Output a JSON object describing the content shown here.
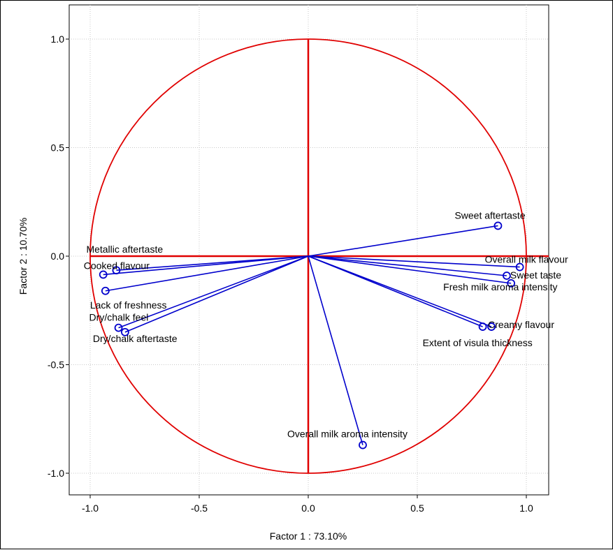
{
  "chart_data": {
    "type": "scatter",
    "subtype": "correlation-circle",
    "xlabel": "Factor 1 : 73.10%",
    "ylabel": "Factor 2 : 10.70%",
    "xlim": [
      -1.1,
      1.1
    ],
    "ylim": [
      -1.1,
      1.1
    ],
    "xticks": [
      "-1.0",
      "-0.5",
      "0.0",
      "0.5",
      "1.0"
    ],
    "yticks": [
      "1.0",
      "0.5",
      "0.0",
      "-0.5",
      "-1.0"
    ],
    "grid": true,
    "colors": {
      "circle": "#e00000",
      "vectors": "#0000cc",
      "grid": "#c8c8c8"
    },
    "variables": [
      {
        "label": "Sweet aftertaste",
        "x": 0.87,
        "y": 0.14
      },
      {
        "label": "Overall milk flavour",
        "x": 0.97,
        "y": -0.05
      },
      {
        "label": "Sweet taste",
        "x": 0.91,
        "y": -0.09
      },
      {
        "label": "Fresh milk aroma intensity",
        "x": 0.93,
        "y": -0.125
      },
      {
        "label": "Creamy flavour",
        "x": 0.84,
        "y": -0.325
      },
      {
        "label": "Extent of visula thickness",
        "x": 0.8,
        "y": -0.325
      },
      {
        "label": "Overall milk aroma intensity",
        "x": 0.25,
        "y": -0.87
      },
      {
        "label": "Metallic aftertaste",
        "x": -0.88,
        "y": -0.065
      },
      {
        "label": "Cooked flavour",
        "x": -0.94,
        "y": -0.085
      },
      {
        "label": "Lack of freshness",
        "x": -0.93,
        "y": -0.16
      },
      {
        "label": "Dry/chalk feel",
        "x": -0.87,
        "y": -0.33
      },
      {
        "label": "Dry/chalk aftertaste",
        "x": -0.84,
        "y": -0.35
      }
    ]
  }
}
